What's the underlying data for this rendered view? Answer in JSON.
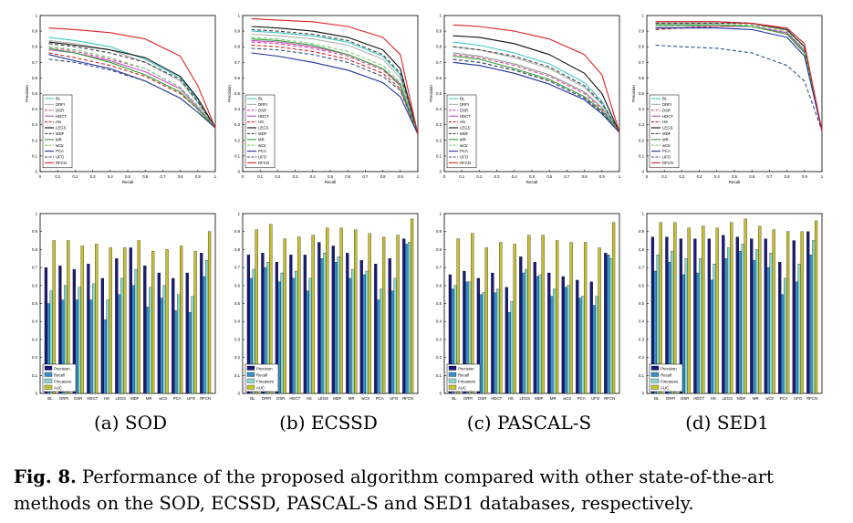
{
  "methods": [
    "BL",
    "DRFI",
    "DSR",
    "HDCT",
    "HS",
    "LEGS",
    "MDF",
    "MR",
    "wCtr",
    "PCA",
    "UFO",
    "RFCN"
  ],
  "method_colors": [
    "#40c8c8",
    "#b0b0b0",
    "#e040a0",
    "#c050c0",
    "#d02020",
    "#101010",
    "#404040",
    "#30a030",
    "#70d070",
    "#2030a0",
    "#305080",
    "#e02020"
  ],
  "method_dashed": [
    false,
    false,
    true,
    false,
    true,
    false,
    true,
    false,
    true,
    false,
    true,
    false
  ],
  "bar_legend": [
    {
      "label": "Precision",
      "color": "#1a1a7a"
    },
    {
      "label": "Recall",
      "color": "#3a8fc8"
    },
    {
      "label": "Fmeasure",
      "color": "#8cd8d0"
    },
    {
      "label": "AUC",
      "color": "#c8c030"
    }
  ],
  "pr_axis": {
    "xlabel": "Recall",
    "ylabel": "Precision",
    "xticks": [
      "0",
      "0.1",
      "0.2",
      "0.3",
      "0.4",
      "0.5",
      "0.6",
      "0.7",
      "0.8",
      "0.9",
      "1"
    ],
    "yticks": [
      "0",
      "0.1",
      "0.2",
      "0.3",
      "0.4",
      "0.5",
      "0.6",
      "0.7",
      "0.8",
      "0.9",
      "1"
    ]
  },
  "bar_axis": {
    "yticks": [
      "0",
      "0.1",
      "0.2",
      "0.3",
      "0.4",
      "0.5",
      "0.6",
      "0.7",
      "0.8",
      "0.9",
      "1"
    ]
  },
  "subcaptions": [
    "(a) SOD",
    "(b) ECSSD",
    "(c) PASCAL-S",
    "(d) SED1"
  ],
  "caption": {
    "label": "Fig. 8.",
    "text": " Performance of the proposed algorithm compared with other state-of-the-art methods on the SOD, ECSSD, PASCAL-S and SED1 databases, respectively."
  },
  "chart_data": [
    {
      "type": "line",
      "dataset": "SOD",
      "xlabel": "Recall",
      "ylabel": "Precision",
      "xlim": [
        0,
        1
      ],
      "ylim": [
        0,
        1
      ],
      "x": [
        0.05,
        0.2,
        0.4,
        0.6,
        0.8,
        0.9,
        1.0
      ],
      "series": [
        {
          "name": "BL",
          "values": [
            0.86,
            0.84,
            0.8,
            0.72,
            0.6,
            0.46,
            0.28
          ]
        },
        {
          "name": "DRFI",
          "values": [
            0.84,
            0.82,
            0.78,
            0.7,
            0.58,
            0.44,
            0.28
          ]
        },
        {
          "name": "DSR",
          "values": [
            0.8,
            0.77,
            0.72,
            0.66,
            0.54,
            0.42,
            0.28
          ]
        },
        {
          "name": "HDCT",
          "values": [
            0.78,
            0.76,
            0.71,
            0.64,
            0.53,
            0.41,
            0.28
          ]
        },
        {
          "name": "HS",
          "values": [
            0.76,
            0.73,
            0.68,
            0.61,
            0.5,
            0.4,
            0.28
          ]
        },
        {
          "name": "LEGS",
          "values": [
            0.83,
            0.81,
            0.78,
            0.73,
            0.61,
            0.47,
            0.28
          ]
        },
        {
          "name": "MDF",
          "values": [
            0.82,
            0.8,
            0.76,
            0.7,
            0.59,
            0.45,
            0.28
          ]
        },
        {
          "name": "MR",
          "values": [
            0.79,
            0.76,
            0.7,
            0.62,
            0.51,
            0.4,
            0.28
          ]
        },
        {
          "name": "wCtr",
          "values": [
            0.8,
            0.78,
            0.73,
            0.66,
            0.54,
            0.42,
            0.28
          ]
        },
        {
          "name": "PCA",
          "values": [
            0.75,
            0.71,
            0.66,
            0.58,
            0.47,
            0.38,
            0.28
          ]
        },
        {
          "name": "UFO",
          "values": [
            0.72,
            0.7,
            0.65,
            0.58,
            0.47,
            0.38,
            0.28
          ]
        },
        {
          "name": "RFCN",
          "values": [
            0.92,
            0.91,
            0.89,
            0.85,
            0.74,
            0.55,
            0.28
          ]
        }
      ]
    },
    {
      "type": "line",
      "dataset": "ECSSD",
      "xlabel": "Recall",
      "ylabel": "Precision",
      "xlim": [
        0,
        1
      ],
      "ylim": [
        0,
        1
      ],
      "x": [
        0.05,
        0.2,
        0.4,
        0.6,
        0.8,
        0.9,
        1.0
      ],
      "series": [
        {
          "name": "BL",
          "values": [
            0.9,
            0.89,
            0.87,
            0.83,
            0.74,
            0.62,
            0.24
          ]
        },
        {
          "name": "DRFI",
          "values": [
            0.88,
            0.87,
            0.85,
            0.81,
            0.72,
            0.6,
            0.24
          ]
        },
        {
          "name": "DSR",
          "values": [
            0.83,
            0.82,
            0.79,
            0.74,
            0.65,
            0.55,
            0.24
          ]
        },
        {
          "name": "HDCT",
          "values": [
            0.84,
            0.83,
            0.8,
            0.75,
            0.66,
            0.56,
            0.24
          ]
        },
        {
          "name": "HS",
          "values": [
            0.81,
            0.8,
            0.77,
            0.72,
            0.63,
            0.53,
            0.24
          ]
        },
        {
          "name": "LEGS",
          "values": [
            0.93,
            0.92,
            0.9,
            0.86,
            0.78,
            0.66,
            0.24
          ]
        },
        {
          "name": "MDF",
          "values": [
            0.91,
            0.9,
            0.88,
            0.84,
            0.75,
            0.63,
            0.24
          ]
        },
        {
          "name": "MR",
          "values": [
            0.85,
            0.84,
            0.81,
            0.75,
            0.66,
            0.55,
            0.24
          ]
        },
        {
          "name": "wCtr",
          "values": [
            0.86,
            0.85,
            0.82,
            0.77,
            0.68,
            0.57,
            0.24
          ]
        },
        {
          "name": "PCA",
          "values": [
            0.76,
            0.74,
            0.7,
            0.65,
            0.57,
            0.48,
            0.24
          ]
        },
        {
          "name": "UFO",
          "values": [
            0.79,
            0.78,
            0.75,
            0.7,
            0.61,
            0.52,
            0.24
          ]
        },
        {
          "name": "RFCN",
          "values": [
            0.98,
            0.97,
            0.96,
            0.93,
            0.86,
            0.75,
            0.24
          ]
        }
      ]
    },
    {
      "type": "line",
      "dataset": "PASCAL-S",
      "xlabel": "Recall",
      "ylabel": "Precision",
      "xlim": [
        0,
        1
      ],
      "ylim": [
        0,
        1
      ],
      "x": [
        0.05,
        0.2,
        0.4,
        0.6,
        0.8,
        0.9,
        1.0
      ],
      "series": [
        {
          "name": "BL",
          "values": [
            0.83,
            0.81,
            0.76,
            0.69,
            0.57,
            0.45,
            0.25
          ]
        },
        {
          "name": "DRFI",
          "values": [
            0.8,
            0.78,
            0.73,
            0.66,
            0.54,
            0.43,
            0.25
          ]
        },
        {
          "name": "DSR",
          "values": [
            0.75,
            0.73,
            0.68,
            0.61,
            0.5,
            0.4,
            0.25
          ]
        },
        {
          "name": "HDCT",
          "values": [
            0.76,
            0.74,
            0.69,
            0.62,
            0.51,
            0.41,
            0.25
          ]
        },
        {
          "name": "HS",
          "values": [
            0.72,
            0.7,
            0.65,
            0.58,
            0.47,
            0.38,
            0.25
          ]
        },
        {
          "name": "LEGS",
          "values": [
            0.87,
            0.86,
            0.82,
            0.75,
            0.63,
            0.5,
            0.25
          ]
        },
        {
          "name": "MDF",
          "values": [
            0.8,
            0.78,
            0.74,
            0.67,
            0.55,
            0.44,
            0.25
          ]
        },
        {
          "name": "MR",
          "values": [
            0.74,
            0.72,
            0.66,
            0.59,
            0.48,
            0.39,
            0.25
          ]
        },
        {
          "name": "wCtr",
          "values": [
            0.76,
            0.74,
            0.69,
            0.62,
            0.51,
            0.41,
            0.25
          ]
        },
        {
          "name": "PCA",
          "values": [
            0.7,
            0.68,
            0.63,
            0.56,
            0.46,
            0.37,
            0.25
          ]
        },
        {
          "name": "UFO",
          "values": [
            0.72,
            0.7,
            0.65,
            0.58,
            0.47,
            0.38,
            0.25
          ]
        },
        {
          "name": "RFCN",
          "values": [
            0.94,
            0.93,
            0.9,
            0.85,
            0.75,
            0.62,
            0.25
          ]
        }
      ]
    },
    {
      "type": "line",
      "dataset": "SED1",
      "xlabel": "Recall",
      "ylabel": "Precision",
      "xlim": [
        0,
        1
      ],
      "ylim": [
        0,
        1
      ],
      "x": [
        0.05,
        0.2,
        0.4,
        0.6,
        0.8,
        0.9,
        1.0
      ],
      "series": [
        {
          "name": "BL",
          "values": [
            0.94,
            0.94,
            0.94,
            0.93,
            0.89,
            0.78,
            0.26
          ]
        },
        {
          "name": "DRFI",
          "values": [
            0.95,
            0.95,
            0.95,
            0.95,
            0.91,
            0.8,
            0.26
          ]
        },
        {
          "name": "DSR",
          "values": [
            0.92,
            0.92,
            0.93,
            0.93,
            0.88,
            0.76,
            0.26
          ]
        },
        {
          "name": "HDCT",
          "values": [
            0.93,
            0.93,
            0.93,
            0.93,
            0.89,
            0.77,
            0.26
          ]
        },
        {
          "name": "HS",
          "values": [
            0.91,
            0.92,
            0.93,
            0.94,
            0.9,
            0.78,
            0.26
          ]
        },
        {
          "name": "LEGS",
          "values": [
            0.96,
            0.96,
            0.96,
            0.95,
            0.91,
            0.8,
            0.26
          ]
        },
        {
          "name": "MDF",
          "values": [
            0.95,
            0.95,
            0.95,
            0.95,
            0.91,
            0.8,
            0.26
          ]
        },
        {
          "name": "MR",
          "values": [
            0.94,
            0.94,
            0.94,
            0.93,
            0.88,
            0.76,
            0.26
          ]
        },
        {
          "name": "wCtr",
          "values": [
            0.93,
            0.93,
            0.94,
            0.94,
            0.9,
            0.78,
            0.26
          ]
        },
        {
          "name": "PCA",
          "values": [
            0.92,
            0.92,
            0.92,
            0.91,
            0.86,
            0.74,
            0.26
          ]
        },
        {
          "name": "UFO",
          "values": [
            0.81,
            0.8,
            0.79,
            0.76,
            0.68,
            0.58,
            0.26
          ]
        },
        {
          "name": "RFCN",
          "values": [
            0.96,
            0.96,
            0.96,
            0.95,
            0.92,
            0.82,
            0.26
          ]
        }
      ]
    },
    {
      "type": "bar",
      "dataset": "SOD",
      "ylim": [
        0,
        1
      ],
      "categories": [
        "BL",
        "DRFI",
        "DSR",
        "HDCT",
        "HS",
        "LEGS",
        "MDF",
        "MR",
        "wCtr",
        "PCA",
        "UFO",
        "RFCN"
      ],
      "series": [
        {
          "name": "Precision",
          "values": [
            0.7,
            0.71,
            0.69,
            0.72,
            0.64,
            0.75,
            0.81,
            0.71,
            0.67,
            0.64,
            0.67,
            0.78
          ]
        },
        {
          "name": "Recall",
          "values": [
            0.5,
            0.52,
            0.52,
            0.52,
            0.41,
            0.55,
            0.6,
            0.48,
            0.53,
            0.46,
            0.45,
            0.65
          ]
        },
        {
          "name": "Fmeasure",
          "values": [
            0.57,
            0.6,
            0.59,
            0.61,
            0.52,
            0.64,
            0.69,
            0.59,
            0.6,
            0.55,
            0.54,
            0.74
          ]
        },
        {
          "name": "AUC",
          "values": [
            0.85,
            0.85,
            0.82,
            0.83,
            0.81,
            0.81,
            0.85,
            0.79,
            0.8,
            0.82,
            0.79,
            0.9
          ]
        }
      ]
    },
    {
      "type": "bar",
      "dataset": "ECSSD",
      "ylim": [
        0,
        1
      ],
      "categories": [
        "BL",
        "DRFI",
        "DSR",
        "HDCT",
        "HS",
        "LEGS",
        "MDF",
        "MR",
        "wCtr",
        "PCA",
        "UFO",
        "RFCN"
      ],
      "series": [
        {
          "name": "Precision",
          "values": [
            0.77,
            0.78,
            0.73,
            0.77,
            0.77,
            0.84,
            0.82,
            0.78,
            0.74,
            0.72,
            0.75,
            0.86
          ]
        },
        {
          "name": "Recall",
          "values": [
            0.64,
            0.7,
            0.62,
            0.64,
            0.57,
            0.75,
            0.73,
            0.64,
            0.66,
            0.52,
            0.57,
            0.83
          ]
        },
        {
          "name": "Fmeasure",
          "values": [
            0.69,
            0.73,
            0.67,
            0.68,
            0.64,
            0.78,
            0.76,
            0.69,
            0.68,
            0.58,
            0.64,
            0.84
          ]
        },
        {
          "name": "AUC",
          "values": [
            0.91,
            0.94,
            0.86,
            0.87,
            0.88,
            0.92,
            0.92,
            0.91,
            0.89,
            0.87,
            0.88,
            0.97
          ]
        }
      ]
    },
    {
      "type": "bar",
      "dataset": "PASCAL-S",
      "ylim": [
        0,
        1
      ],
      "categories": [
        "BL",
        "DRFI",
        "DSR",
        "HDCT",
        "HS",
        "LEGS",
        "MDF",
        "MR",
        "wCtr",
        "PCA",
        "UFO",
        "RFCN"
      ],
      "series": [
        {
          "name": "Precision",
          "values": [
            0.66,
            0.68,
            0.64,
            0.67,
            0.59,
            0.76,
            0.73,
            0.67,
            0.65,
            0.63,
            0.62,
            0.78
          ]
        },
        {
          "name": "Recall",
          "values": [
            0.58,
            0.62,
            0.55,
            0.56,
            0.45,
            0.67,
            0.65,
            0.54,
            0.59,
            0.53,
            0.49,
            0.77
          ]
        },
        {
          "name": "Fmeasure",
          "values": [
            0.6,
            0.62,
            0.56,
            0.58,
            0.51,
            0.69,
            0.66,
            0.58,
            0.6,
            0.54,
            0.54,
            0.75
          ]
        },
        {
          "name": "AUC",
          "values": [
            0.86,
            0.89,
            0.81,
            0.84,
            0.83,
            0.88,
            0.88,
            0.85,
            0.84,
            0.84,
            0.81,
            0.95
          ]
        }
      ]
    },
    {
      "type": "bar",
      "dataset": "SED1",
      "ylim": [
        0,
        1
      ],
      "categories": [
        "BL",
        "DRFI",
        "DSR",
        "HDCT",
        "HS",
        "LEGS",
        "MDF",
        "MR",
        "wCtr",
        "PCA",
        "UFO",
        "RFCN"
      ],
      "series": [
        {
          "name": "Precision",
          "values": [
            0.87,
            0.87,
            0.86,
            0.86,
            0.86,
            0.88,
            0.87,
            0.86,
            0.86,
            0.73,
            0.85,
            0.9
          ]
        },
        {
          "name": "Recall",
          "values": [
            0.68,
            0.73,
            0.66,
            0.67,
            0.63,
            0.75,
            0.79,
            0.74,
            0.7,
            0.55,
            0.62,
            0.77
          ]
        },
        {
          "name": "Fmeasure",
          "values": [
            0.77,
            0.79,
            0.75,
            0.75,
            0.72,
            0.81,
            0.83,
            0.8,
            0.78,
            0.64,
            0.72,
            0.85
          ]
        },
        {
          "name": "AUC",
          "values": [
            0.95,
            0.95,
            0.92,
            0.93,
            0.92,
            0.95,
            0.97,
            0.93,
            0.91,
            0.9,
            0.9,
            0.96
          ]
        }
      ]
    }
  ]
}
